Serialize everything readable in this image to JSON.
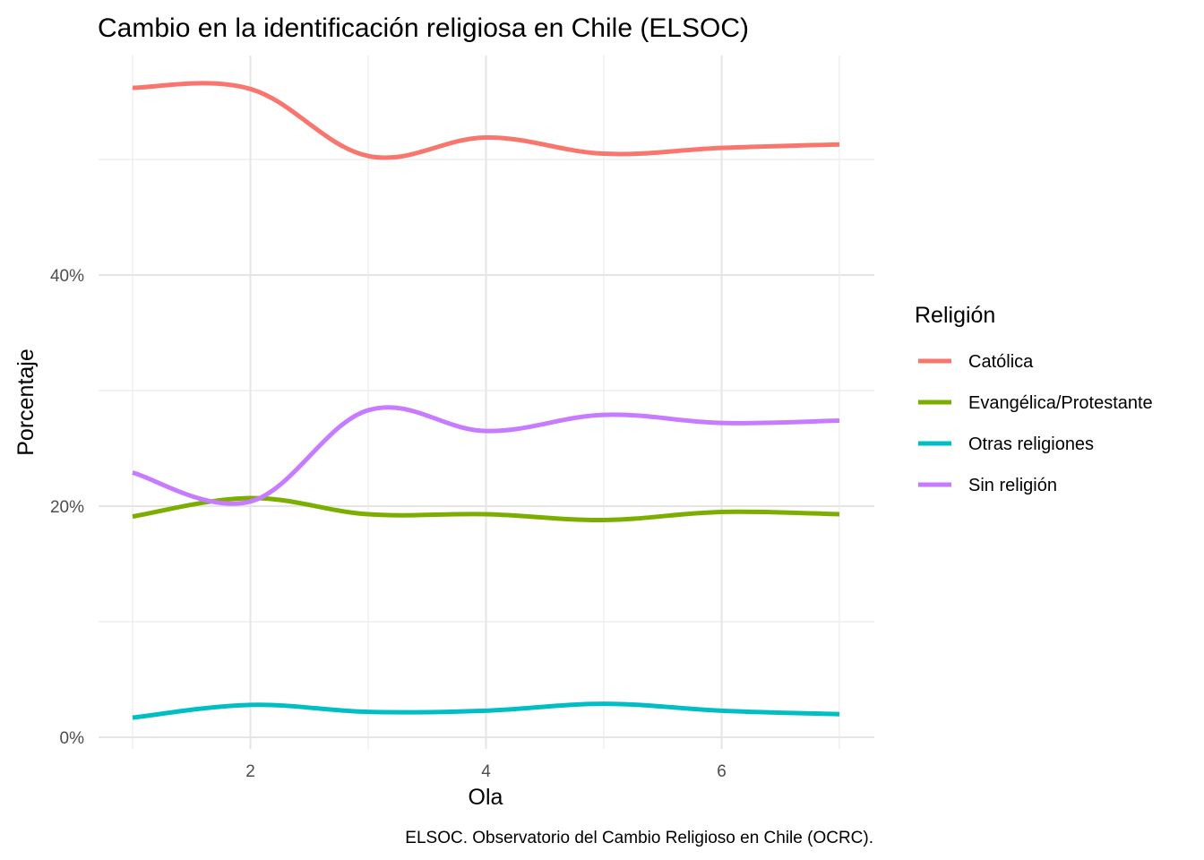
{
  "chart_data": {
    "type": "line",
    "title": "Cambio en la identificación religiosa en Chile (ELSOC)",
    "xlabel": "Ola",
    "ylabel": "Porcentaje",
    "caption": "ELSOC. Observatorio del Cambio Religioso en Chile (OCRC).",
    "x": [
      1,
      2,
      3,
      4,
      5,
      6,
      7
    ],
    "xlim": [
      0.7,
      7.3
    ],
    "ylim": [
      -1,
      59.5
    ],
    "x_ticks": [
      2,
      4,
      6
    ],
    "x_tick_labels": [
      "2",
      "4",
      "6"
    ],
    "y_ticks": [
      0,
      20,
      40
    ],
    "y_tick_labels": [
      "0%",
      "20%",
      "40%"
    ],
    "y_minor_ticks": [
      10,
      30,
      50
    ],
    "x_minor_ticks": [
      1,
      3,
      5,
      7
    ],
    "grid": true,
    "legend": {
      "title": "Religión",
      "position": "right"
    },
    "series": [
      {
        "name": "Católica",
        "color": "#F8766D",
        "values": [
          56.2,
          56.1,
          50.3,
          51.9,
          50.5,
          51.0,
          51.3
        ]
      },
      {
        "name": "Evangélica/Protestante",
        "color": "#7CAE00",
        "values": [
          19.1,
          20.7,
          19.3,
          19.3,
          18.8,
          19.5,
          19.3
        ]
      },
      {
        "name": "Otras religiones",
        "color": "#00BFC4",
        "values": [
          1.7,
          2.8,
          2.2,
          2.3,
          2.9,
          2.3,
          2.0
        ]
      },
      {
        "name": "Sin religión",
        "color": "#C77CFF",
        "values": [
          22.9,
          20.4,
          28.3,
          26.5,
          27.9,
          27.2,
          27.4
        ]
      }
    ]
  }
}
